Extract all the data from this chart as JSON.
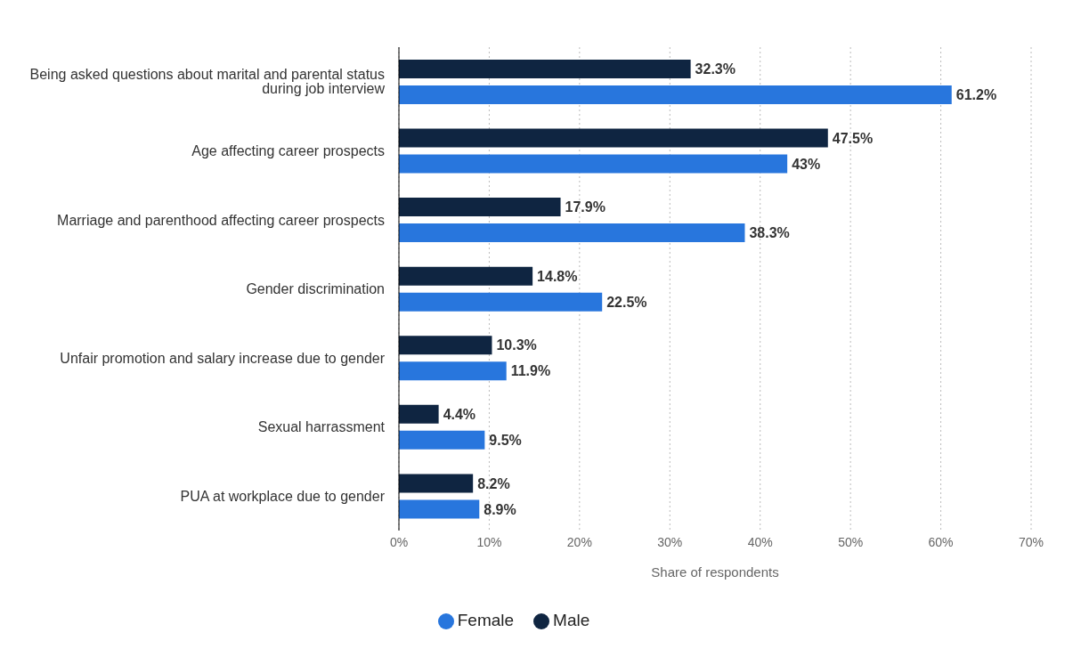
{
  "chart_data": {
    "type": "bar",
    "orientation": "horizontal",
    "xlabel": "Share of respondents",
    "categories": [
      "Being asked questions about marital and parental status during job interview",
      "Age affecting career prospects",
      "Marriage and parenthood affecting career prospects",
      "Gender discrimination",
      "Unfair promotion and salary increase due to gender",
      "Sexual harrassment",
      "PUA at workplace due to gender"
    ],
    "series": [
      {
        "name": "Male",
        "color": "#0f2541",
        "values": [
          32.3,
          47.5,
          17.9,
          14.8,
          10.3,
          4.4,
          8.2
        ],
        "value_labels": [
          "32.3%",
          "47.5%",
          "17.9%",
          "14.8%",
          "10.3%",
          "4.4%",
          "8.2%"
        ]
      },
      {
        "name": "Female",
        "color": "#2876dd",
        "values": [
          61.2,
          43,
          38.3,
          22.5,
          11.9,
          9.5,
          8.9
        ],
        "value_labels": [
          "61.2%",
          "43%",
          "38.3%",
          "22.5%",
          "11.9%",
          "9.5%",
          "8.9%"
        ]
      }
    ],
    "xlim": [
      0,
      70
    ],
    "xticks": [
      {
        "value": 0,
        "label": "0%"
      },
      {
        "value": 10,
        "label": "10%"
      },
      {
        "value": 20,
        "label": "20%"
      },
      {
        "value": 30,
        "label": "30%"
      },
      {
        "value": 40,
        "label": "40%"
      },
      {
        "value": 50,
        "label": "50%"
      },
      {
        "value": 60,
        "label": "60%"
      },
      {
        "value": 70,
        "label": "70%"
      }
    ],
    "grid": "x",
    "legend": "bottom"
  }
}
